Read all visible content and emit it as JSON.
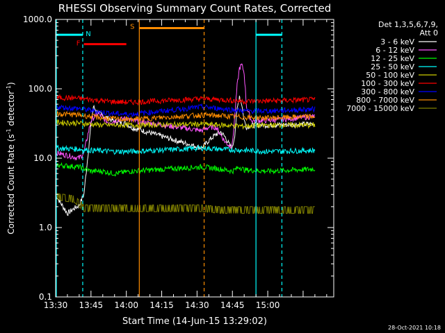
{
  "chart_data": {
    "type": "line",
    "title": "RHESSI Observing Summary Count Rates, Corrected",
    "xlabel": "Start Time (14-Jun-15 13:29:02)",
    "ylabel_main": "Corrected Count Rate (s",
    "ylabel_sup1": "-1",
    "ylabel_mid": " detector",
    "ylabel_sup2": "-1",
    "ylabel_end": ")",
    "yscale": "log",
    "ylim": [
      0.1,
      1000
    ],
    "xlim_min": [
      810,
      928
    ],
    "y_tick_labels": [
      "1000.0",
      "100.0",
      "10.0",
      "1.0",
      "0.1"
    ],
    "y_ticks": [
      1000,
      100,
      10,
      1,
      0.1
    ],
    "x_tick_labels": [
      "13:30",
      "13:45",
      "14:00",
      "14:15",
      "14:30",
      "14:45",
      "15:00"
    ],
    "x_ticks_min": [
      810,
      825,
      840,
      855,
      870,
      885,
      900
    ],
    "legend_header1": "Det 1,3,5,6,7,9,",
    "legend_header2": "Att 0",
    "series": [
      {
        "name": "3 - 6 keV",
        "color": "#ffffff",
        "points": [
          [
            810,
            3
          ],
          [
            812,
            2.3
          ],
          [
            815,
            1.6
          ],
          [
            818,
            1.9
          ],
          [
            820,
            2.1
          ],
          [
            822,
            3
          ],
          [
            825,
            30
          ],
          [
            826,
            55
          ],
          [
            828,
            45
          ],
          [
            832,
            38
          ],
          [
            836,
            33
          ],
          [
            840,
            32
          ],
          [
            842,
            28
          ],
          [
            872,
            14
          ],
          [
            875,
            18
          ],
          [
            878,
            22
          ],
          [
            880,
            24
          ],
          [
            882,
            20
          ],
          [
            884,
            15
          ],
          [
            885,
            14
          ],
          [
            886,
            22
          ],
          [
            887,
            50
          ],
          [
            888,
            80
          ],
          [
            889,
            60
          ],
          [
            890,
            35
          ],
          [
            891,
            28
          ],
          [
            893,
            30
          ],
          [
            900,
            30
          ],
          [
            920,
            31
          ]
        ]
      },
      {
        "name": "6 - 12 keV",
        "color": "#ff55ff",
        "points": [
          [
            810,
            12
          ],
          [
            815,
            11
          ],
          [
            820,
            10
          ],
          [
            822,
            12
          ],
          [
            825,
            35
          ],
          [
            828,
            45
          ],
          [
            832,
            33
          ],
          [
            836,
            35
          ],
          [
            840,
            38
          ],
          [
            842,
            35
          ],
          [
            872,
            25
          ],
          [
            875,
            28
          ],
          [
            878,
            28
          ],
          [
            880,
            22
          ],
          [
            882,
            17
          ],
          [
            884,
            15
          ],
          [
            885,
            16
          ],
          [
            886,
            40
          ],
          [
            887,
            110
          ],
          [
            888,
            200
          ],
          [
            889,
            220
          ],
          [
            890,
            170
          ],
          [
            891,
            55
          ],
          [
            893,
            35
          ],
          [
            900,
            35
          ],
          [
            920,
            40
          ]
        ]
      },
      {
        "name": "12 - 25 keV",
        "color": "#00ff00",
        "points": [
          [
            810,
            8
          ],
          [
            820,
            7.5
          ],
          [
            825,
            6.5
          ],
          [
            830,
            6.5
          ],
          [
            835,
            6
          ],
          [
            842,
            6.5
          ],
          [
            872,
            7.5
          ],
          [
            880,
            7
          ],
          [
            885,
            6.5
          ],
          [
            888,
            7.5
          ],
          [
            890,
            6.8
          ],
          [
            900,
            6.5
          ],
          [
            920,
            7
          ]
        ]
      },
      {
        "name": "25 - 50 keV",
        "color": "#00ffff",
        "points": [
          [
            810,
            14
          ],
          [
            820,
            13.5
          ],
          [
            825,
            13
          ],
          [
            830,
            12.8
          ],
          [
            835,
            12.5
          ],
          [
            842,
            12.5
          ],
          [
            872,
            14
          ],
          [
            880,
            13.5
          ],
          [
            890,
            13
          ],
          [
            900,
            12.5
          ],
          [
            920,
            13
          ]
        ]
      },
      {
        "name": "50 - 100 keV",
        "color": "#cccc00",
        "points": [
          [
            810,
            33
          ],
          [
            820,
            32
          ],
          [
            825,
            31
          ],
          [
            830,
            30
          ],
          [
            835,
            30
          ],
          [
            842,
            30
          ],
          [
            872,
            31
          ],
          [
            880,
            30
          ],
          [
            890,
            29
          ],
          [
            900,
            30
          ],
          [
            920,
            30
          ]
        ]
      },
      {
        "name": "100 - 300 keV",
        "color": "#ff0000",
        "points": [
          [
            810,
            75
          ],
          [
            820,
            73
          ],
          [
            825,
            70
          ],
          [
            830,
            67
          ],
          [
            835,
            65
          ],
          [
            842,
            64
          ],
          [
            872,
            72
          ],
          [
            880,
            70
          ],
          [
            890,
            66
          ],
          [
            900,
            67
          ],
          [
            920,
            70
          ]
        ]
      },
      {
        "name": "300 - 800 keV",
        "color": "#0000ff",
        "points": [
          [
            810,
            55
          ],
          [
            820,
            52
          ],
          [
            825,
            49
          ],
          [
            830,
            46
          ],
          [
            835,
            44
          ],
          [
            842,
            43
          ],
          [
            872,
            55
          ],
          [
            880,
            52
          ],
          [
            890,
            48
          ],
          [
            900,
            48
          ],
          [
            920,
            51
          ]
        ]
      },
      {
        "name": "800 - 7000 keV",
        "color": "#ff8c00",
        "points": [
          [
            810,
            44
          ],
          [
            820,
            42
          ],
          [
            825,
            40
          ],
          [
            830,
            38
          ],
          [
            835,
            37
          ],
          [
            842,
            36
          ],
          [
            872,
            42
          ],
          [
            880,
            41
          ],
          [
            890,
            39
          ],
          [
            900,
            38
          ],
          [
            920,
            40
          ]
        ]
      },
      {
        "name": "7000 - 15000 keV",
        "color": "#808000",
        "points": [
          [
            810,
            2.5
          ],
          [
            818,
            2.3
          ],
          [
            822,
            1.7
          ],
          [
            830,
            1.7
          ],
          [
            842,
            1.7
          ],
          [
            872,
            1.7
          ],
          [
            880,
            1.6
          ],
          [
            890,
            1.6
          ],
          [
            900,
            1.6
          ],
          [
            920,
            1.6
          ]
        ]
      }
    ],
    "attenuator_flags": [
      {
        "label": "N",
        "color": "#00ffff",
        "bar_from": 810,
        "bar_to": 821.5,
        "y": 600
      },
      {
        "label": "F",
        "color": "#ff0000",
        "bar_from": 822,
        "bar_to": 840,
        "y": 440
      },
      {
        "label": "S",
        "color": "#ff8c00",
        "bar_from": 845.5,
        "bar_to": 873,
        "y": 750
      }
    ],
    "vlines": [
      {
        "x": 810.3,
        "color": "#00ffff",
        "dash": false
      },
      {
        "x": 821.5,
        "color": "#00ffff",
        "dash": true
      },
      {
        "x": 845.5,
        "color": "#ff8c00",
        "dash": false
      },
      {
        "x": 873,
        "color": "#ff8c00",
        "dash": true
      },
      {
        "x": 895,
        "color": "#00ffff",
        "dash": false
      },
      {
        "x": 906,
        "color": "#00ffff",
        "dash": true
      }
    ],
    "right_bar": {
      "color": "#00ffff",
      "from": 895,
      "to": 906,
      "y": 600
    },
    "footer_date": "28-Oct-2021 10:18"
  }
}
